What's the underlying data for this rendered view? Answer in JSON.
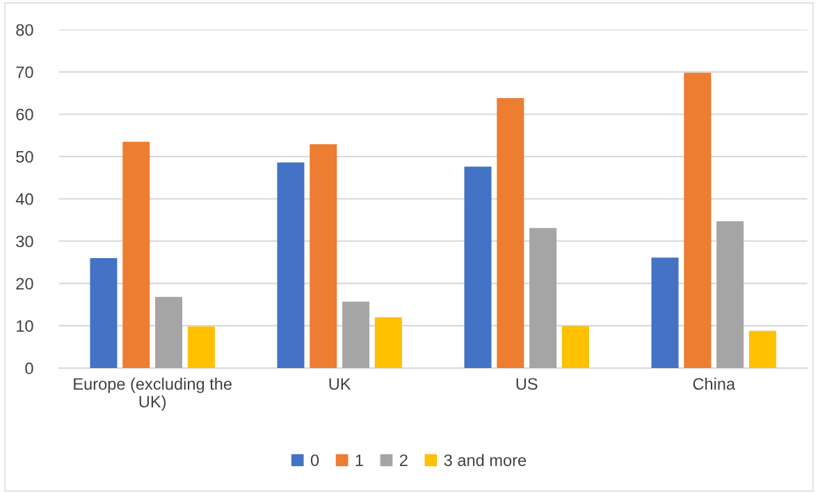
{
  "chart_data": {
    "type": "bar",
    "categories": [
      "Europe (excluding the UK)",
      "UK",
      "US",
      "China"
    ],
    "series": [
      {
        "name": "0",
        "color": "#4472c4",
        "values": [
          26.0,
          48.6,
          47.6,
          26.1
        ]
      },
      {
        "name": "1",
        "color": "#ed7d31",
        "values": [
          53.5,
          52.9,
          63.8,
          69.8
        ]
      },
      {
        "name": "2",
        "color": "#a5a5a5",
        "values": [
          16.8,
          15.7,
          33.1,
          34.7
        ]
      },
      {
        "name": "3 and more",
        "color": "#ffc000",
        "values": [
          9.8,
          12.0,
          9.9,
          8.8
        ]
      }
    ],
    "ylim": [
      0,
      80
    ],
    "yticks": [
      0,
      10,
      20,
      30,
      40,
      50,
      60,
      70,
      80
    ],
    "grid": "y",
    "legend": "bottom"
  }
}
